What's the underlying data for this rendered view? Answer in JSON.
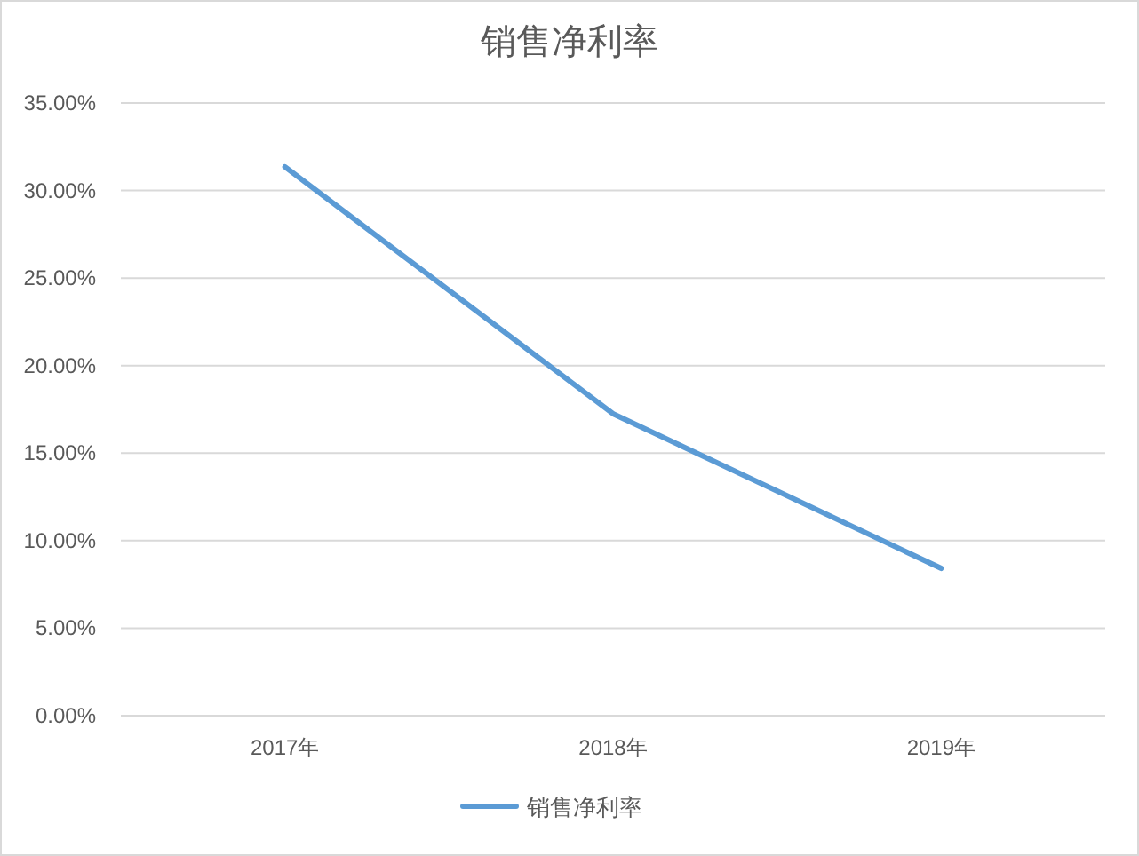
{
  "chart_data": {
    "type": "line",
    "title": "销售净利率",
    "categories": [
      "2017年",
      "2018年",
      "2019年"
    ],
    "series": [
      {
        "name": "销售净利率",
        "color": "#5b9bd5",
        "values": [
          31.35,
          17.25,
          8.42
        ]
      }
    ],
    "ylim": [
      0,
      35
    ],
    "yticks": [
      {
        "value": 0,
        "label": "0.00%"
      },
      {
        "value": 5,
        "label": "5.00%"
      },
      {
        "value": 10,
        "label": "10.00%"
      },
      {
        "value": 15,
        "label": "15.00%"
      },
      {
        "value": 20,
        "label": "20.00%"
      },
      {
        "value": 25,
        "label": "25.00%"
      },
      {
        "value": 30,
        "label": "30.00%"
      },
      {
        "value": 35,
        "label": "35.00%"
      }
    ],
    "grid": "y",
    "legend": "bottom",
    "marker": "none",
    "line_style": "solid"
  }
}
